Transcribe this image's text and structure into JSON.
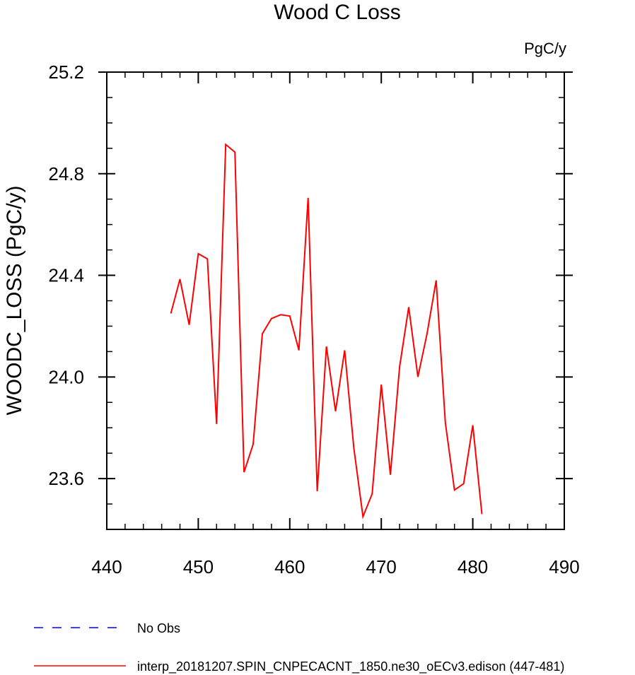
{
  "chart_data": {
    "type": "line",
    "title": "Wood C Loss",
    "units_label": "PgC/y",
    "xlabel": "",
    "ylabel": "WOODC_LOSS  (PgC/y)",
    "xlim": [
      440,
      490
    ],
    "ylim": [
      23.4,
      25.2
    ],
    "x_ticks": [
      440,
      450,
      460,
      470,
      480,
      490
    ],
    "x_tick_labels": [
      "440",
      "450",
      "460",
      "470",
      "480",
      "490"
    ],
    "y_ticks": [
      23.6,
      24.0,
      24.4,
      24.8,
      25.2
    ],
    "y_tick_labels": [
      "23.6",
      "24.0",
      "24.4",
      "24.8",
      "25.2"
    ],
    "grid": false,
    "series": [
      {
        "name": "interp_20181207.SPIN_CNPECACNT_1850.ne30_oECv3.edison (447-481)",
        "color": "#ff0000",
        "dash": "solid",
        "x": [
          447,
          448,
          449,
          450,
          451,
          452,
          453,
          454,
          455,
          456,
          457,
          458,
          459,
          460,
          461,
          462,
          463,
          464,
          465,
          466,
          467,
          468,
          469,
          470,
          471,
          472,
          473,
          474,
          475,
          476,
          477,
          478,
          479,
          480,
          481
        ],
        "y": [
          24.25,
          24.385,
          24.205,
          24.485,
          24.465,
          23.815,
          24.915,
          24.885,
          23.625,
          23.735,
          24.17,
          24.23,
          24.245,
          24.24,
          24.105,
          24.705,
          23.55,
          24.12,
          23.865,
          24.105,
          23.72,
          23.45,
          23.54,
          23.97,
          23.615,
          24.04,
          24.275,
          24.0,
          24.17,
          24.38,
          23.82,
          23.555,
          23.58,
          23.81,
          23.46
        ]
      }
    ],
    "legend": [
      {
        "label": "No Obs",
        "color": "#0000ff",
        "dash": "dashed"
      },
      {
        "label": "interp_20181207.SPIN_CNPECACNT_1850.ne30_oECv3.edison (447-481)",
        "color": "#ff0000",
        "dash": "solid"
      }
    ],
    "legend_position": "bottom"
  }
}
